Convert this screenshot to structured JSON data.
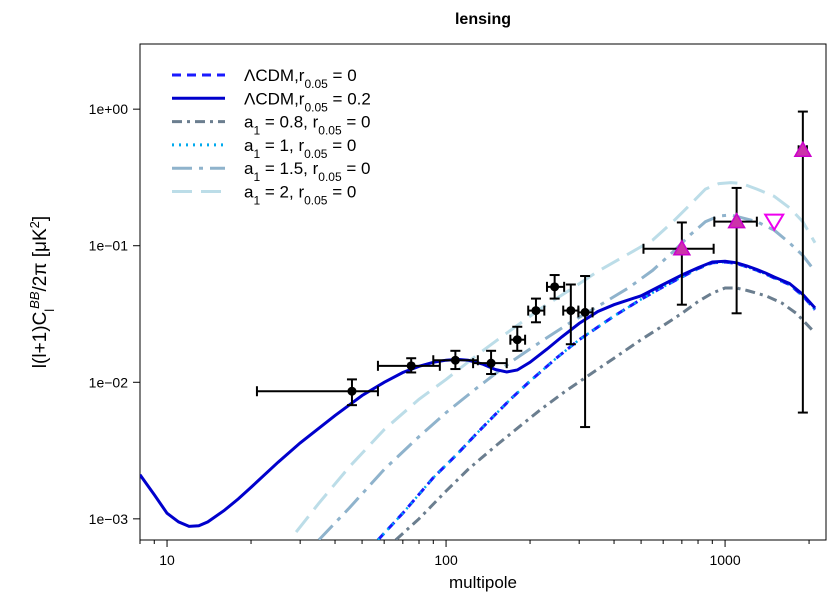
{
  "chart_data": {
    "type": "line",
    "title": "lensing",
    "xlabel": "multipole",
    "ylabel": "l(l+1)C_l^{BB}/2π [μK²]",
    "x_scale": "log",
    "y_scale": "log",
    "xlim": [
      8,
      2300
    ],
    "ylim": [
      0.0007,
      3
    ],
    "x_ticks": [
      {
        "value": 10,
        "label": "10"
      },
      {
        "value": 100,
        "label": "100"
      },
      {
        "value": 1000,
        "label": "1000"
      }
    ],
    "y_ticks": [
      {
        "value": 0.001,
        "label": "1e−03"
      },
      {
        "value": 0.01,
        "label": "1e−02"
      },
      {
        "value": 0.1,
        "label": "1e−01"
      },
      {
        "value": 1,
        "label": "1e+00"
      }
    ],
    "legend_position": "top-left",
    "series": [
      {
        "id": "lcdm-r0",
        "main": "ΛCDM,",
        "main_sub": "",
        "mid": "",
        "r_value": "0",
        "color": "#1a1aff",
        "style": "dash",
        "x": [
          57,
          70,
          90,
          110,
          130,
          150,
          170,
          200,
          250,
          300,
          400,
          500,
          600,
          700,
          800,
          900,
          1000,
          1100,
          1200,
          1300,
          1400,
          1500,
          1700,
          1900,
          2100
        ],
        "y": [
          0.0007,
          0.0011,
          0.002,
          0.003,
          0.0043,
          0.0058,
          0.0075,
          0.0102,
          0.0152,
          0.0205,
          0.0305,
          0.0405,
          0.05,
          0.059,
          0.068,
          0.075,
          0.076,
          0.074,
          0.07,
          0.066,
          0.062,
          0.058,
          0.052,
          0.043,
          0.034
        ]
      },
      {
        "id": "lcdm-r02",
        "main": "ΛCDM,",
        "main_sub": "",
        "mid": "",
        "r_value": "0.2",
        "color": "#0000cc",
        "style": "solid",
        "x": [
          8,
          9,
          10,
          11,
          12,
          13,
          14,
          16,
          18,
          20,
          25,
          30,
          40,
          50,
          60,
          70,
          80,
          90,
          100,
          110,
          120,
          135,
          150,
          165,
          180,
          200,
          230,
          260,
          300,
          350,
          400,
          500,
          600,
          700,
          800,
          900,
          1000,
          1100,
          1200,
          1300,
          1400,
          1500,
          1700,
          1900,
          2100
        ],
        "y": [
          0.0021,
          0.0015,
          0.0011,
          0.00095,
          0.00088,
          0.00089,
          0.00095,
          0.00115,
          0.0014,
          0.0017,
          0.0026,
          0.0036,
          0.0057,
          0.008,
          0.01,
          0.0118,
          0.0131,
          0.014,
          0.0145,
          0.0147,
          0.0145,
          0.0136,
          0.0124,
          0.0119,
          0.0123,
          0.014,
          0.0175,
          0.0215,
          0.027,
          0.033,
          0.037,
          0.043,
          0.052,
          0.061,
          0.069,
          0.076,
          0.077,
          0.075,
          0.071,
          0.067,
          0.063,
          0.059,
          0.053,
          0.044,
          0.035
        ]
      },
      {
        "id": "a1-08",
        "main": "a",
        "main_sub": "1",
        "mid": " = 0.8, ",
        "r_value": "0",
        "color": "#6b7e8f",
        "style": "dashdot",
        "x": [
          66,
          80,
          100,
          120,
          150,
          180,
          220,
          270,
          330,
          400,
          500,
          600,
          700,
          800,
          900,
          1000,
          1100,
          1200,
          1400,
          1600,
          1800,
          2100
        ],
        "y": [
          0.0007,
          0.001,
          0.0016,
          0.0023,
          0.0034,
          0.0046,
          0.0064,
          0.0087,
          0.0115,
          0.015,
          0.0205,
          0.026,
          0.032,
          0.039,
          0.045,
          0.049,
          0.049,
          0.047,
          0.043,
          0.038,
          0.032,
          0.023
        ]
      },
      {
        "id": "a1-1",
        "main": "a",
        "main_sub": "1",
        "mid": " = 1,   ",
        "r_value": "0",
        "color": "#00aaee",
        "style": "dot",
        "x": [
          57,
          70,
          90,
          110,
          130,
          150,
          170,
          200,
          250,
          300,
          400,
          500,
          600,
          700,
          800,
          900,
          1000,
          1100,
          1200,
          1300,
          1400,
          1500,
          1700,
          1900,
          2100
        ],
        "y": [
          0.0007,
          0.0011,
          0.002,
          0.003,
          0.0043,
          0.0058,
          0.0075,
          0.0102,
          0.0152,
          0.0205,
          0.0305,
          0.0405,
          0.05,
          0.059,
          0.068,
          0.075,
          0.076,
          0.074,
          0.07,
          0.066,
          0.062,
          0.058,
          0.052,
          0.043,
          0.034
        ]
      },
      {
        "id": "a1-15",
        "main": "a",
        "main_sub": "1",
        "mid": " = 1.5, ",
        "r_value": "0",
        "color": "#8fb3cc",
        "style": "longdashdot",
        "x": [
          35,
          45,
          60,
          80,
          100,
          130,
          170,
          220,
          280,
          350,
          450,
          550,
          650,
          750,
          850,
          950,
          1050,
          1150,
          1300,
          1500,
          1700,
          1900,
          2100
        ],
        "y": [
          0.0007,
          0.0012,
          0.0023,
          0.004,
          0.006,
          0.0092,
          0.014,
          0.02,
          0.0275,
          0.036,
          0.049,
          0.066,
          0.09,
          0.12,
          0.15,
          0.165,
          0.168,
          0.16,
          0.15,
          0.13,
          0.105,
          0.085,
          0.065
        ]
      },
      {
        "id": "a1-2",
        "main": "a",
        "main_sub": "1",
        "mid": " = 2,   ",
        "r_value": "0",
        "color": "#bcdde8",
        "style": "longdash",
        "x": [
          29,
          35,
          45,
          60,
          80,
          100,
          130,
          170,
          220,
          280,
          350,
          450,
          550,
          650,
          750,
          850,
          950,
          1050,
          1150,
          1300,
          1500,
          1700,
          1900,
          2100
        ],
        "y": [
          0.0008,
          0.0013,
          0.0024,
          0.0045,
          0.0075,
          0.0105,
          0.016,
          0.024,
          0.035,
          0.048,
          0.065,
          0.087,
          0.11,
          0.15,
          0.2,
          0.26,
          0.285,
          0.29,
          0.285,
          0.26,
          0.23,
          0.19,
          0.15,
          0.105
        ]
      }
    ],
    "data_points": [
      {
        "x": 46,
        "y": 0.0086,
        "xerr": [
          21,
          57
        ],
        "yerr": [
          0.0068,
          0.0105
        ]
      },
      {
        "x": 75,
        "y": 0.0132,
        "xerr": [
          57,
          95
        ],
        "yerr": [
          0.0118,
          0.015
        ]
      },
      {
        "x": 108,
        "y": 0.0145,
        "xerr": [
          90,
          130
        ],
        "yerr": [
          0.0125,
          0.017
        ]
      },
      {
        "x": 145,
        "y": 0.0138,
        "xerr": [
          125,
          165
        ],
        "yerr": [
          0.0115,
          0.017
        ]
      },
      {
        "x": 180,
        "y": 0.0205,
        "xerr": [
          170,
          192
        ],
        "yerr": [
          0.017,
          0.0255
        ]
      },
      {
        "x": 210,
        "y": 0.0335,
        "xerr": [
          197,
          225
        ],
        "yerr": [
          0.0275,
          0.041
        ]
      },
      {
        "x": 245,
        "y": 0.05,
        "xerr": [
          230,
          265
        ],
        "yerr": [
          0.041,
          0.061
        ]
      },
      {
        "x": 280,
        "y": 0.0335,
        "xerr": [
          263,
          298
        ],
        "yerr": [
          0.019,
          0.052
        ]
      },
      {
        "x": 315,
        "y": 0.0325,
        "xerr": [
          298,
          335
        ],
        "yerr": [
          0.0047,
          0.06
        ]
      }
    ],
    "triangle_points": [
      {
        "x": 700,
        "y": 0.095,
        "xerr": [
          510,
          910
        ],
        "yerr": [
          0.037,
          0.148
        ]
      },
      {
        "x": 1100,
        "y": 0.15,
        "xerr": [
          915,
          1300
        ],
        "yerr": [
          0.032,
          0.265
        ]
      },
      {
        "x": 1900,
        "y": 0.5,
        "xerr": [
          1835,
          1965
        ],
        "yerr": [
          0.006,
          0.96
        ]
      }
    ],
    "upper_limit_points": [
      {
        "x": 1500,
        "y": 0.15
      }
    ],
    "legend_r_label": "r",
    "legend_r_sub": "0.05",
    "legend_r_eq": " = "
  }
}
